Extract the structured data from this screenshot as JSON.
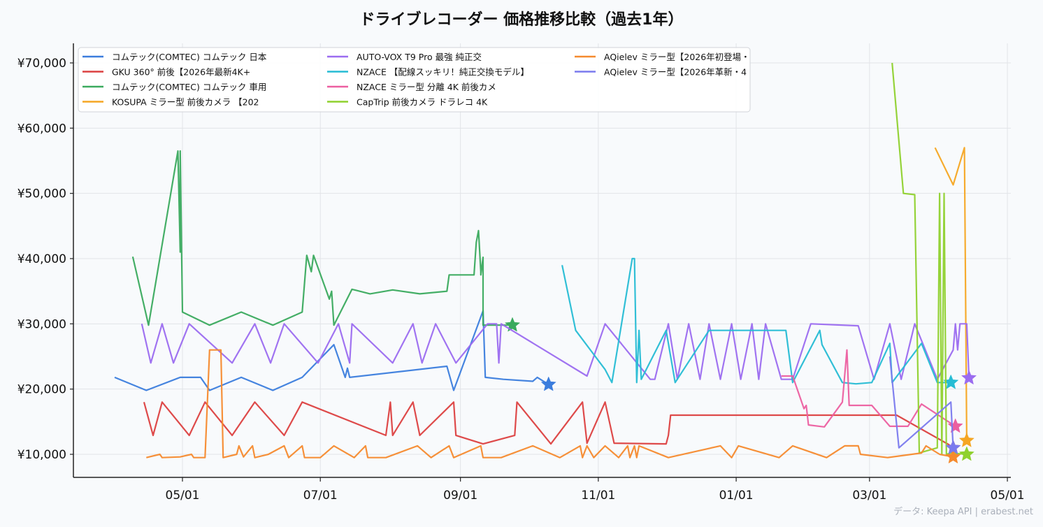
{
  "title": "ドライブレコーダー 価格推移比較（過去1年）",
  "credit": "データ: Keepa API | erabest.net",
  "chart_data": {
    "type": "line",
    "title": "ドライブレコーダー 価格推移比較（過去1年）",
    "xlabel": "",
    "ylabel": "",
    "xlim": [
      "2025-03-22",
      "2026-05-02"
    ],
    "ylim": [
      6500,
      73000
    ],
    "grid": true,
    "legend_position": "top-left",
    "x_ticks": [
      {
        "date": "2025-05-01",
        "label": "05/01"
      },
      {
        "date": "2025-07-01",
        "label": "07/01"
      },
      {
        "date": "2025-09-01",
        "label": "09/01"
      },
      {
        "date": "2025-11-01",
        "label": "11/01"
      },
      {
        "date": "2026-01-01",
        "label": "01/01"
      },
      {
        "date": "2026-03-01",
        "label": "03/01"
      },
      {
        "date": "2026-05-01",
        "label": "05/01"
      }
    ],
    "y_ticks": [
      {
        "value": 10000,
        "label": "¥10,000"
      },
      {
        "value": 20000,
        "label": "¥20,000"
      },
      {
        "value": 30000,
        "label": "¥30,000"
      },
      {
        "value": 40000,
        "label": "¥40,000"
      },
      {
        "value": 50000,
        "label": "¥50,000"
      },
      {
        "value": 60000,
        "label": "¥60,000"
      },
      {
        "value": 70000,
        "label": "¥70,000"
      }
    ],
    "end_marker": "star",
    "series": [
      {
        "name": "コムテック(COMTEC) コムテック 日本",
        "color": "#3b7ddd",
        "points": [
          [
            "2025-04-01",
            21800
          ],
          [
            "2025-04-15",
            19800
          ],
          [
            "2025-04-30",
            21800
          ],
          [
            "2025-05-09",
            21800
          ],
          [
            "2025-05-13",
            19800
          ],
          [
            "2025-05-27",
            21800
          ],
          [
            "2025-06-10",
            19800
          ],
          [
            "2025-06-23",
            21800
          ],
          [
            "2025-07-07",
            26800
          ],
          [
            "2025-07-12",
            21800
          ],
          [
            "2025-07-13",
            23200
          ],
          [
            "2025-07-14",
            21800
          ],
          [
            "2025-08-26",
            23500
          ],
          [
            "2025-08-29",
            19800
          ],
          [
            "2025-09-11",
            32000
          ],
          [
            "2025-09-12",
            21800
          ],
          [
            "2025-09-20",
            21500
          ],
          [
            "2025-10-03",
            21200
          ],
          [
            "2025-10-05",
            21800
          ],
          [
            "2025-10-10",
            20700
          ]
        ]
      },
      {
        "name": "GKU 360° 前後【2026年最新4K+",
        "color": "#dc4040",
        "points": [
          [
            "2025-04-14",
            18000
          ],
          [
            "2025-04-18",
            12900
          ],
          [
            "2025-04-22",
            18000
          ],
          [
            "2025-05-04",
            12900
          ],
          [
            "2025-05-11",
            18000
          ],
          [
            "2025-05-23",
            12900
          ],
          [
            "2025-06-02",
            18000
          ],
          [
            "2025-06-15",
            12900
          ],
          [
            "2025-06-23",
            18000
          ],
          [
            "2025-07-30",
            12900
          ],
          [
            "2025-08-01",
            18000
          ],
          [
            "2025-08-02",
            12900
          ],
          [
            "2025-08-11",
            18000
          ],
          [
            "2025-08-14",
            12900
          ],
          [
            "2025-08-29",
            18000
          ],
          [
            "2025-08-30",
            12900
          ],
          [
            "2025-09-11",
            11600
          ],
          [
            "2025-09-25",
            12900
          ],
          [
            "2025-09-26",
            18000
          ],
          [
            "2025-10-11",
            11600
          ],
          [
            "2025-10-25",
            18000
          ],
          [
            "2025-10-27",
            11700
          ],
          [
            "2025-11-04",
            18000
          ],
          [
            "2025-11-08",
            11700
          ],
          [
            "2025-12-01",
            11600
          ],
          [
            "2025-12-02",
            12900
          ],
          [
            "2025-12-03",
            16000
          ],
          [
            "2026-03-13",
            16000
          ],
          [
            "2026-04-05",
            11500
          ],
          [
            "2026-04-07",
            11000
          ]
        ]
      },
      {
        "name": "コムテック(COMTEC) コムテック 車用",
        "color": "#3aaa5e",
        "points": [
          [
            "2025-04-09",
            40300
          ],
          [
            "2025-04-16",
            29800
          ],
          [
            "2025-04-29",
            56500
          ],
          [
            "2025-04-30",
            41000
          ],
          [
            "2025-04-30",
            56500
          ],
          [
            "2025-05-01",
            31800
          ],
          [
            "2025-05-13",
            29800
          ],
          [
            "2025-05-27",
            31800
          ],
          [
            "2025-06-10",
            29800
          ],
          [
            "2025-06-23",
            31800
          ],
          [
            "2025-06-25",
            40500
          ],
          [
            "2025-06-27",
            38000
          ],
          [
            "2025-06-28",
            40500
          ],
          [
            "2025-07-05",
            33800
          ],
          [
            "2025-07-06",
            35000
          ],
          [
            "2025-07-07",
            29800
          ],
          [
            "2025-07-15",
            35300
          ],
          [
            "2025-07-23",
            34600
          ],
          [
            "2025-08-02",
            35200
          ],
          [
            "2025-08-14",
            34600
          ],
          [
            "2025-08-26",
            35000
          ],
          [
            "2025-08-27",
            37500
          ],
          [
            "2025-09-07",
            37500
          ],
          [
            "2025-09-08",
            42500
          ],
          [
            "2025-09-09",
            44300
          ],
          [
            "2025-09-10",
            38000
          ],
          [
            "2025-09-10",
            37500
          ],
          [
            "2025-09-11",
            40200
          ],
          [
            "2025-09-11",
            29800
          ],
          [
            "2025-09-24",
            29800
          ]
        ]
      },
      {
        "name": "KOSUPA ミラー型 前後カメラ 【202",
        "color": "#f5a623",
        "points": [
          [
            "2026-03-30",
            57000
          ],
          [
            "2026-04-07",
            51300
          ],
          [
            "2026-04-12",
            57000
          ],
          [
            "2026-04-13",
            12100
          ]
        ]
      },
      {
        "name": "AUTO-VOX T9 Pro 最強 純正交",
        "color": "#9b6cf0",
        "points": [
          [
            "2025-04-13",
            30000
          ],
          [
            "2025-04-17",
            24000
          ],
          [
            "2025-04-22",
            30000
          ],
          [
            "2025-04-27",
            24000
          ],
          [
            "2025-05-04",
            30000
          ],
          [
            "2025-05-23",
            24000
          ],
          [
            "2025-06-02",
            30000
          ],
          [
            "2025-06-09",
            24000
          ],
          [
            "2025-06-15",
            30000
          ],
          [
            "2025-06-30",
            24000
          ],
          [
            "2025-07-09",
            30000
          ],
          [
            "2025-07-14",
            24000
          ],
          [
            "2025-07-15",
            30000
          ],
          [
            "2025-08-02",
            24000
          ],
          [
            "2025-08-11",
            30000
          ],
          [
            "2025-08-15",
            24000
          ],
          [
            "2025-08-21",
            30000
          ],
          [
            "2025-08-30",
            24000
          ],
          [
            "2025-09-13",
            30000
          ],
          [
            "2025-09-17",
            30000
          ],
          [
            "2025-09-18",
            24000
          ],
          [
            "2025-09-19",
            30000
          ],
          [
            "2025-10-27",
            22000
          ],
          [
            "2025-11-04",
            30000
          ],
          [
            "2025-11-24",
            21500
          ],
          [
            "2025-11-26",
            21500
          ],
          [
            "2025-12-02",
            30000
          ],
          [
            "2025-12-06",
            21500
          ],
          [
            "2025-12-11",
            30000
          ],
          [
            "2025-12-16",
            21500
          ],
          [
            "2025-12-20",
            30000
          ],
          [
            "2025-12-25",
            21500
          ],
          [
            "2025-12-30",
            30000
          ],
          [
            "2026-01-03",
            21500
          ],
          [
            "2026-01-08",
            30000
          ],
          [
            "2026-01-11",
            21500
          ],
          [
            "2026-01-14",
            30000
          ],
          [
            "2026-01-21",
            21500
          ],
          [
            "2026-01-26",
            21500
          ],
          [
            "2026-02-03",
            30000
          ],
          [
            "2026-02-24",
            29700
          ],
          [
            "2026-03-03",
            21500
          ],
          [
            "2026-03-10",
            30000
          ],
          [
            "2026-03-15",
            21500
          ],
          [
            "2026-03-21",
            30000
          ],
          [
            "2026-03-31",
            21500
          ],
          [
            "2026-04-07",
            26000
          ],
          [
            "2026-04-08",
            30000
          ],
          [
            "2026-04-09",
            26000
          ],
          [
            "2026-04-10",
            30000
          ],
          [
            "2026-04-13",
            30000
          ],
          [
            "2026-04-14",
            21700
          ]
        ]
      },
      {
        "name": "NZACE 【配線スッキリ！純正交換モデル】",
        "color": "#26bcd4",
        "points": [
          [
            "2025-10-16",
            39000
          ],
          [
            "2025-10-22",
            29000
          ],
          [
            "2025-11-04",
            23000
          ],
          [
            "2025-11-07",
            21000
          ],
          [
            "2025-11-16",
            40000
          ],
          [
            "2025-11-17",
            40000
          ],
          [
            "2025-11-18",
            21000
          ],
          [
            "2025-11-19",
            29000
          ],
          [
            "2025-11-20",
            21500
          ],
          [
            "2025-12-01",
            29000
          ],
          [
            "2025-12-05",
            21000
          ],
          [
            "2025-12-20",
            29000
          ],
          [
            "2026-01-23",
            29000
          ],
          [
            "2026-01-26",
            21000
          ],
          [
            "2026-02-07",
            29000
          ],
          [
            "2026-02-08",
            26800
          ],
          [
            "2026-02-17",
            21000
          ],
          [
            "2026-02-23",
            20800
          ],
          [
            "2026-03-02",
            21000
          ],
          [
            "2026-03-10",
            27000
          ],
          [
            "2026-03-11",
            21000
          ],
          [
            "2026-03-24",
            27000
          ],
          [
            "2026-03-31",
            21000
          ],
          [
            "2026-04-06",
            21000
          ]
        ]
      },
      {
        "name": "NZACE ミラー型 分離 4K 前後カメ",
        "color": "#ec5fa0",
        "points": [
          [
            "2026-01-21",
            22000
          ],
          [
            "2026-01-26",
            22000
          ],
          [
            "2026-01-31",
            17000
          ],
          [
            "2026-02-01",
            17500
          ],
          [
            "2026-02-02",
            14500
          ],
          [
            "2026-02-09",
            14200
          ],
          [
            "2026-02-17",
            18000
          ],
          [
            "2026-02-19",
            26000
          ],
          [
            "2026-02-20",
            17500
          ],
          [
            "2026-03-02",
            17500
          ],
          [
            "2026-03-10",
            14300
          ],
          [
            "2026-03-18",
            14300
          ],
          [
            "2026-03-24",
            17700
          ],
          [
            "2026-04-08",
            14300
          ]
        ]
      },
      {
        "name": "CapTrip 前後カメラ ドラレコ 4K",
        "color": "#8fd12e",
        "points": [
          [
            "2026-03-11",
            70000
          ],
          [
            "2026-03-16",
            50000
          ],
          [
            "2026-03-21",
            49800
          ],
          [
            "2026-03-23",
            10200
          ],
          [
            "2026-03-31",
            11000
          ],
          [
            "2026-04-01",
            50000
          ],
          [
            "2026-04-02",
            10000
          ],
          [
            "2026-04-03",
            50000
          ],
          [
            "2026-04-04",
            10000
          ],
          [
            "2026-04-06",
            10200
          ],
          [
            "2026-04-13",
            10000
          ]
        ]
      },
      {
        "name": "AQielev ミラー型【2026年初登場・",
        "color": "#f58a2e",
        "points": [
          [
            "2025-04-15",
            9500
          ],
          [
            "2025-04-21",
            10000
          ],
          [
            "2025-04-22",
            9500
          ],
          [
            "2025-04-30",
            9600
          ],
          [
            "2025-05-05",
            10000
          ],
          [
            "2025-05-06",
            9500
          ],
          [
            "2025-05-11",
            9500
          ],
          [
            "2025-05-13",
            26000
          ],
          [
            "2025-05-18",
            26000
          ],
          [
            "2025-05-19",
            9500
          ],
          [
            "2025-05-25",
            10000
          ],
          [
            "2025-05-26",
            11300
          ],
          [
            "2025-05-28",
            9600
          ],
          [
            "2025-06-01",
            11300
          ],
          [
            "2025-06-02",
            9500
          ],
          [
            "2025-06-08",
            10000
          ],
          [
            "2025-06-15",
            11300
          ],
          [
            "2025-06-17",
            9500
          ],
          [
            "2025-06-23",
            11300
          ],
          [
            "2025-06-24",
            9500
          ],
          [
            "2025-07-01",
            9500
          ],
          [
            "2025-07-07",
            11300
          ],
          [
            "2025-07-16",
            9500
          ],
          [
            "2025-07-21",
            11300
          ],
          [
            "2025-07-22",
            9500
          ],
          [
            "2025-07-30",
            9500
          ],
          [
            "2025-08-13",
            11300
          ],
          [
            "2025-08-19",
            9500
          ],
          [
            "2025-08-27",
            11300
          ],
          [
            "2025-08-29",
            9500
          ],
          [
            "2025-09-10",
            11300
          ],
          [
            "2025-09-11",
            9500
          ],
          [
            "2025-09-19",
            9500
          ],
          [
            "2025-10-03",
            11300
          ],
          [
            "2025-10-15",
            9500
          ],
          [
            "2025-10-24",
            11300
          ],
          [
            "2025-10-25",
            9500
          ],
          [
            "2025-10-27",
            11300
          ],
          [
            "2025-10-30",
            9500
          ],
          [
            "2025-11-04",
            11300
          ],
          [
            "2025-11-10",
            9500
          ],
          [
            "2025-11-14",
            11300
          ],
          [
            "2025-11-15",
            9500
          ],
          [
            "2025-11-17",
            11300
          ],
          [
            "2025-11-18",
            9500
          ],
          [
            "2025-11-19",
            11300
          ],
          [
            "2025-12-02",
            9500
          ],
          [
            "2025-12-25",
            11300
          ],
          [
            "2025-12-30",
            9500
          ],
          [
            "2026-01-02",
            11300
          ],
          [
            "2026-01-20",
            9500
          ],
          [
            "2026-01-26",
            11300
          ],
          [
            "2026-02-10",
            9500
          ],
          [
            "2026-02-18",
            11300
          ],
          [
            "2026-02-24",
            11300
          ],
          [
            "2026-02-25",
            10000
          ],
          [
            "2026-03-09",
            9500
          ],
          [
            "2026-03-24",
            10200
          ],
          [
            "2026-03-26",
            11300
          ],
          [
            "2026-04-01",
            10000
          ],
          [
            "2026-04-07",
            9600
          ]
        ]
      },
      {
        "name": "AQielev ミラー型【2026年革新・4",
        "color": "#7a7aee",
        "points": [
          [
            "2026-03-10",
            25000
          ],
          [
            "2026-03-14",
            11000
          ],
          [
            "2026-04-06",
            18000
          ],
          [
            "2026-04-07",
            11000
          ]
        ]
      }
    ]
  }
}
